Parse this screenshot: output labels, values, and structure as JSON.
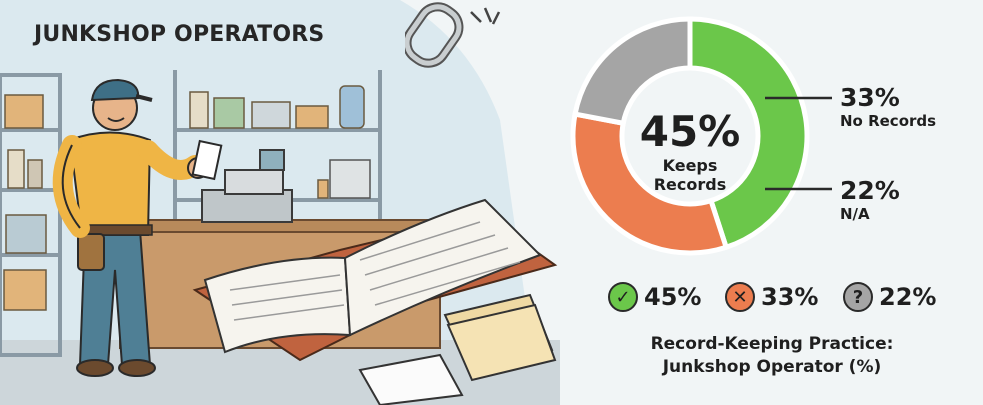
{
  "title": "JUNKSHOP OPERATORS",
  "chart_data": {
    "type": "pie",
    "donut": true,
    "categories": [
      "Keeps Records",
      "No Records",
      "N/A"
    ],
    "values": [
      45,
      33,
      22
    ],
    "colors": [
      "#6bc74a",
      "#ec7d4f",
      "#a5a5a5"
    ],
    "center": {
      "value": "45%",
      "label": "Keeps\nRecords"
    },
    "callouts": [
      {
        "value": "33%",
        "label": "No Records"
      },
      {
        "value": "22%",
        "label": "N/A"
      }
    ],
    "legend": [
      {
        "icon": "check-icon",
        "value": "45%",
        "color": "#6bc74a"
      },
      {
        "icon": "cross-icon",
        "value": "33%",
        "color": "#ec7d4f"
      },
      {
        "icon": "question-icon",
        "value": "22%",
        "color": "#a5a5a5"
      }
    ],
    "caption_line1": "Record-Keeping Practice:",
    "caption_line2": "Junkshop Operator (%)"
  }
}
